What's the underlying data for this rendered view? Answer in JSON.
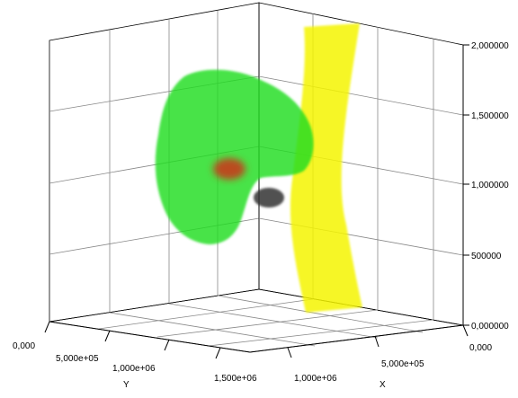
{
  "viewer": {
    "axes": {
      "z_ticks": [
        "2,000000",
        "1,500000",
        "1,000000",
        "500000",
        "0,000000"
      ],
      "y_ticks": [
        "0,000",
        "5,000e+05",
        "1,000e+06",
        "1,500e+06"
      ],
      "x_ticks": [
        "1,000e+06",
        "5,000e+05",
        "0,000"
      ],
      "x_label": "X",
      "y_label": "Y"
    },
    "objects": [
      {
        "name": "green-volume",
        "color": "#22dd22"
      },
      {
        "name": "yellow-sheet",
        "color": "#f5f500"
      },
      {
        "name": "red-core",
        "color": "#c0441a"
      },
      {
        "name": "gray-blob",
        "color": "#333333"
      }
    ]
  }
}
